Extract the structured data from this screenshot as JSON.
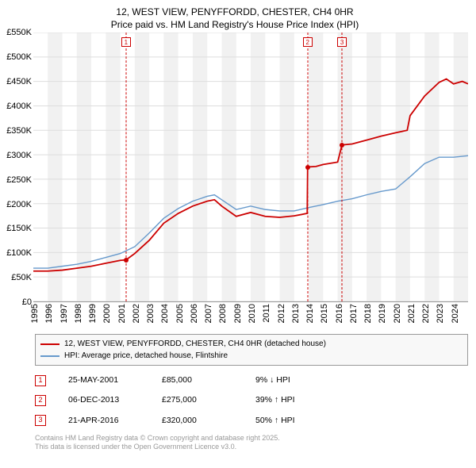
{
  "title_line1": "12, WEST VIEW, PENYFFORDD, CHESTER, CH4 0HR",
  "title_line2": "Price paid vs. HM Land Registry's House Price Index (HPI)",
  "chart": {
    "type": "line",
    "background_color": "#ffffff",
    "plot_bg_band_color": "#f1f1f1",
    "grid_color": "#dddddd",
    "axis_color": "#999999",
    "y": {
      "min": 0,
      "max": 550000,
      "step": 50000,
      "labels": [
        "£0",
        "£50K",
        "£100K",
        "£150K",
        "£200K",
        "£250K",
        "£300K",
        "£350K",
        "£400K",
        "£450K",
        "£500K",
        "£550K"
      ]
    },
    "x": {
      "min": 1995,
      "max": 2025,
      "years": [
        1995,
        1996,
        1997,
        1998,
        1999,
        2000,
        2001,
        2002,
        2003,
        2004,
        2005,
        2006,
        2007,
        2008,
        2009,
        2010,
        2011,
        2012,
        2013,
        2014,
        2015,
        2016,
        2017,
        2018,
        2019,
        2020,
        2021,
        2022,
        2023,
        2024
      ]
    },
    "series": [
      {
        "name": "12, WEST VIEW, PENYFFORDD, CHESTER, CH4 0HR (detached house)",
        "color": "#cc0000",
        "width": 1.8,
        "data": [
          [
            1995,
            62000
          ],
          [
            1996,
            62000
          ],
          [
            1997,
            64000
          ],
          [
            1998,
            68000
          ],
          [
            1999,
            72000
          ],
          [
            2000,
            78000
          ],
          [
            2001,
            84000
          ],
          [
            2001.4,
            85000
          ],
          [
            2002,
            98000
          ],
          [
            2003,
            125000
          ],
          [
            2004,
            160000
          ],
          [
            2005,
            180000
          ],
          [
            2006,
            195000
          ],
          [
            2007,
            205000
          ],
          [
            2007.5,
            208000
          ],
          [
            2008,
            195000
          ],
          [
            2009,
            174000
          ],
          [
            2010,
            182000
          ],
          [
            2011,
            174000
          ],
          [
            2012,
            172000
          ],
          [
            2013,
            175000
          ],
          [
            2013.9,
            180000
          ],
          [
            2013.93,
            275000
          ],
          [
            2014.5,
            276000
          ],
          [
            2015,
            280000
          ],
          [
            2016,
            285000
          ],
          [
            2016.3,
            320000
          ],
          [
            2017,
            322000
          ],
          [
            2018,
            330000
          ],
          [
            2019,
            338000
          ],
          [
            2020,
            345000
          ],
          [
            2020.8,
            350000
          ],
          [
            2021,
            380000
          ],
          [
            2022,
            420000
          ],
          [
            2023,
            448000
          ],
          [
            2023.5,
            455000
          ],
          [
            2024,
            445000
          ],
          [
            2024.6,
            450000
          ],
          [
            2025,
            445000
          ]
        ]
      },
      {
        "name": "HPI: Average price, detached house, Flintshire",
        "color": "#6699cc",
        "width": 1.4,
        "data": [
          [
            1995,
            68000
          ],
          [
            1996,
            68000
          ],
          [
            1997,
            72000
          ],
          [
            1998,
            76000
          ],
          [
            1999,
            82000
          ],
          [
            2000,
            90000
          ],
          [
            2001,
            98000
          ],
          [
            2002,
            112000
          ],
          [
            2003,
            140000
          ],
          [
            2004,
            170000
          ],
          [
            2005,
            190000
          ],
          [
            2006,
            205000
          ],
          [
            2007,
            215000
          ],
          [
            2007.5,
            218000
          ],
          [
            2008,
            208000
          ],
          [
            2009,
            188000
          ],
          [
            2010,
            195000
          ],
          [
            2011,
            188000
          ],
          [
            2012,
            185000
          ],
          [
            2013,
            185000
          ],
          [
            2014,
            192000
          ],
          [
            2015,
            198000
          ],
          [
            2016,
            205000
          ],
          [
            2017,
            210000
          ],
          [
            2018,
            218000
          ],
          [
            2019,
            225000
          ],
          [
            2020,
            230000
          ],
          [
            2021,
            255000
          ],
          [
            2022,
            282000
          ],
          [
            2023,
            295000
          ],
          [
            2024,
            295000
          ],
          [
            2025,
            298000
          ]
        ]
      }
    ],
    "vert_markers": [
      {
        "n": "1",
        "year": 2001.4
      },
      {
        "n": "2",
        "year": 2013.93
      },
      {
        "n": "3",
        "year": 2016.3
      }
    ],
    "marker_dot_color": "#cc0000"
  },
  "legend": {
    "items": [
      {
        "color": "#cc0000",
        "label": "12, WEST VIEW, PENYFFORDD, CHESTER, CH4 0HR (detached house)"
      },
      {
        "color": "#6699cc",
        "label": "HPI: Average price, detached house, Flintshire"
      }
    ]
  },
  "markers": [
    {
      "n": "1",
      "date": "25-MAY-2001",
      "price": "£85,000",
      "pct": "9% ↓ HPI"
    },
    {
      "n": "2",
      "date": "06-DEC-2013",
      "price": "£275,000",
      "pct": "39% ↑ HPI"
    },
    {
      "n": "3",
      "date": "21-APR-2016",
      "price": "£320,000",
      "pct": "50% ↑ HPI"
    }
  ],
  "footer_line1": "Contains HM Land Registry data © Crown copyright and database right 2025.",
  "footer_line2": "This data is licensed under the Open Government Licence v3.0."
}
